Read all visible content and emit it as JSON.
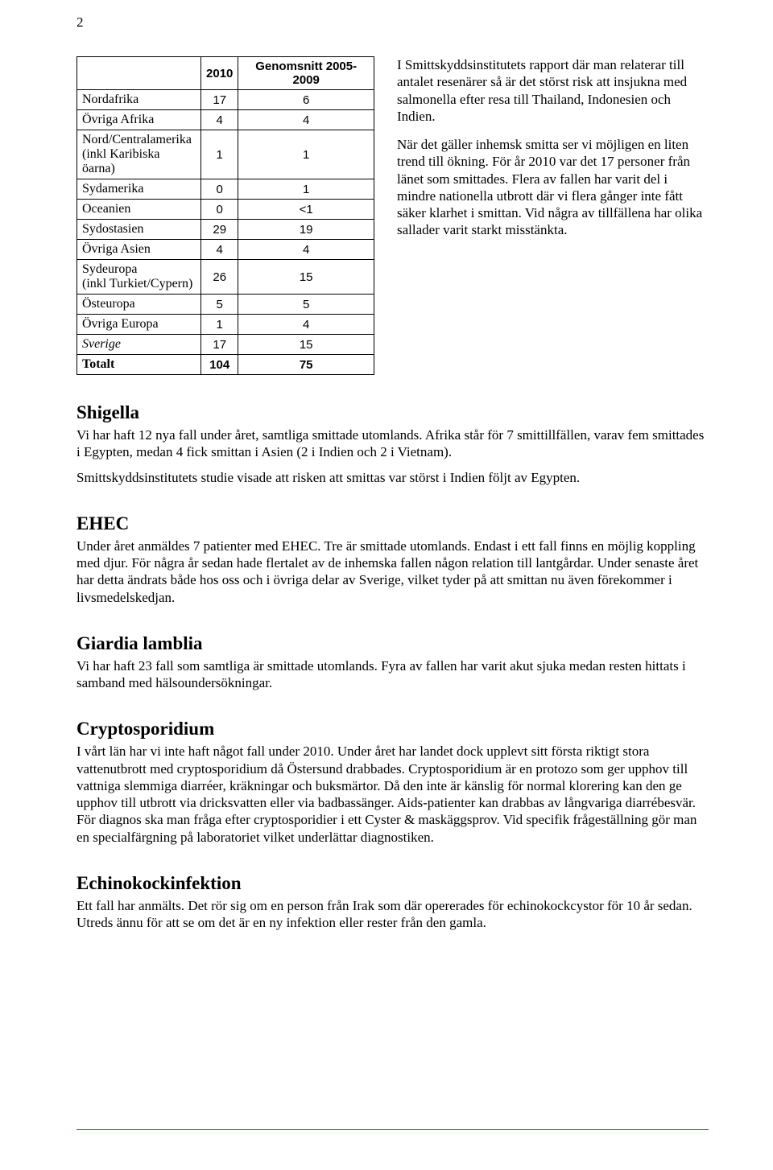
{
  "page_number": "2",
  "table": {
    "header": {
      "blank": "",
      "col1": "2010",
      "col2": "Genomsnitt 2005-2009"
    },
    "rows": [
      {
        "label": "Nordafrika",
        "c1": "17",
        "c2": "6",
        "sub": false,
        "italic": false
      },
      {
        "label": "Övriga Afrika",
        "c1": "4",
        "c2": "4",
        "sub": false,
        "italic": false
      },
      {
        "label": "Nord/Centralamerika\n(inkl Karibiska öarna)",
        "c1": "1",
        "c2": "1",
        "sub": true,
        "italic": false
      },
      {
        "label": "Sydamerika",
        "c1": "0",
        "c2": "1",
        "sub": false,
        "italic": false
      },
      {
        "label": "Oceanien",
        "c1": "0",
        "c2": "<1",
        "sub": false,
        "italic": false
      },
      {
        "label": "Sydostasien",
        "c1": "29",
        "c2": "19",
        "sub": false,
        "italic": false
      },
      {
        "label": "Övriga Asien",
        "c1": "4",
        "c2": "4",
        "sub": false,
        "italic": false
      },
      {
        "label": "Sydeuropa\n(inkl Turkiet/Cypern)",
        "c1": "26",
        "c2": "15",
        "sub": true,
        "italic": false
      },
      {
        "label": "Östeuropa",
        "c1": "5",
        "c2": "5",
        "sub": false,
        "italic": false
      },
      {
        "label": "Övriga Europa",
        "c1": "1",
        "c2": "4",
        "sub": false,
        "italic": false
      },
      {
        "label": "Sverige",
        "c1": "17",
        "c2": "15",
        "sub": false,
        "italic": true
      }
    ],
    "total": {
      "label": "Totalt",
      "c1": "104",
      "c2": "75"
    }
  },
  "right_paragraphs": [
    "I Smittskyddsinstitutets rapport där man relaterar till antalet resenärer så är det störst risk att insjukna med salmonella efter resa till Thailand, Indonesien och Indien.",
    "När det gäller inhemsk smitta ser vi möjligen en liten trend till ökning. För år 2010 var det 17 personer från länet som smittades. Flera av fallen har varit del i mindre nationella utbrott där vi flera gånger inte fått säker klarhet i smittan. Vid några av tillfällena har olika sallader varit starkt misstänkta."
  ],
  "sections": [
    {
      "title": "Shigella",
      "paragraphs": [
        "Vi har haft 12 nya fall under året, samtliga smittade utomlands. Afrika står för 7 smittillfällen, varav fem smittades i Egypten, medan 4 fick smittan i Asien (2 i Indien och 2 i Vietnam).",
        "Smittskyddsinstitutets studie visade att risken att smittas var störst i Indien följt av Egypten."
      ]
    },
    {
      "title": "EHEC",
      "paragraphs": [
        "Under året anmäldes 7 patienter med EHEC. Tre är smittade utomlands. Endast i ett fall finns en möjlig koppling med djur. För några år sedan hade flertalet av de inhemska fallen någon relation till lantgårdar. Under senaste året har detta ändrats både hos oss och i övriga delar av Sverige, vilket tyder på att smittan nu även förekommer i livsmedelskedjan."
      ]
    },
    {
      "title": "Giardia lamblia",
      "paragraphs": [
        "Vi har haft 23 fall som samtliga är smittade utomlands. Fyra av fallen har varit akut sjuka medan resten hittats i samband med hälsoundersökningar."
      ]
    },
    {
      "title": "Cryptosporidium",
      "paragraphs": [
        "I vårt län har vi inte haft något fall under 2010. Under året har landet dock upplevt sitt första riktigt stora vattenutbrott med cryptosporidium då Östersund drabbades. Cryptosporidium är en protozo som ger upphov till vattniga slemmiga diarréer, kräkningar och buksmärtor. Då den inte är känslig för normal klorering kan den ge upphov till utbrott via dricksvatten eller via badbassänger. Aids-patienter kan drabbas av långvariga diarrébesvär. För diagnos ska man fråga efter cryptosporidier i ett Cyster & maskäggsprov. Vid specifik frågeställning gör man en specialfärgning på laboratoriet vilket underlättar diagnostiken."
      ]
    },
    {
      "title": "Echinokockinfektion",
      "paragraphs": [
        "Ett fall har anmälts. Det rör sig om en person från Irak som där opererades för echinokockcystor för 10 år sedan. Utreds ännu för att se om det är en ny infektion eller rester från den gamla."
      ]
    }
  ]
}
